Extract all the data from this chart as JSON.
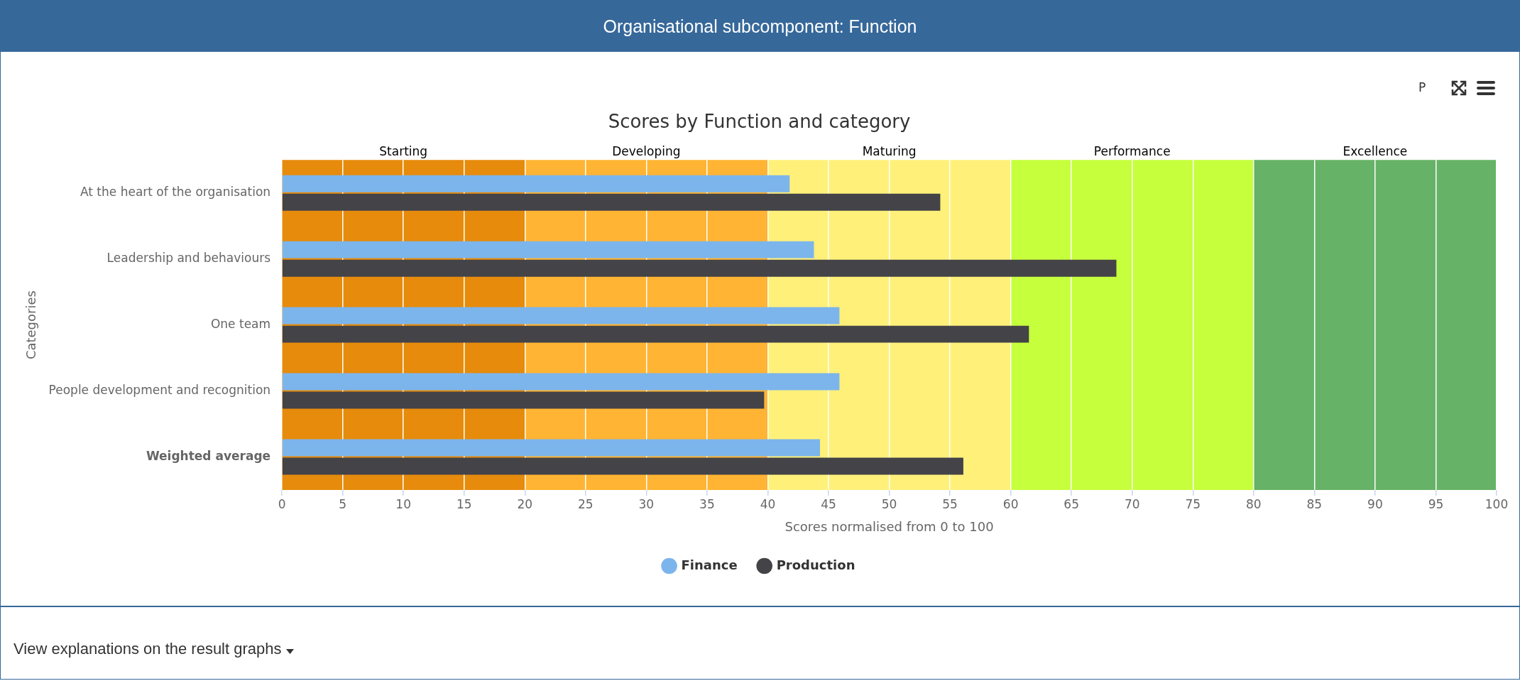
{
  "chart_data": {
    "type": "bar",
    "orientation": "horizontal",
    "title": "Organisational subcomponent: Function",
    "subtitle": "Scores by Function and category",
    "xlabel": "Scores normalised from 0 to 100",
    "ylabel": "Categories",
    "categories": [
      "At the heart of the organisation",
      "Leadership and behaviours",
      "One team",
      "People development and recognition",
      "Weighted average"
    ],
    "series": [
      {
        "name": "Finance",
        "color": "#7cb5ec",
        "values": [
          41.8,
          43.8,
          45.9,
          45.9,
          44.3
        ]
      },
      {
        "name": "Production",
        "color": "#434348",
        "values": [
          54.2,
          68.7,
          61.5,
          39.7,
          56.1
        ]
      }
    ],
    "xlim": [
      0,
      100
    ],
    "xticks": [
      0,
      5,
      10,
      15,
      20,
      25,
      30,
      35,
      40,
      45,
      50,
      55,
      60,
      65,
      70,
      75,
      80,
      85,
      90,
      95,
      100
    ],
    "bands": [
      {
        "axis": "x",
        "from": 0,
        "to": 20,
        "label": "Starting",
        "color": "#e68b0c"
      },
      {
        "axis": "x",
        "from": 20,
        "to": 40,
        "label": "Developing",
        "color": "#ffb433"
      },
      {
        "axis": "x",
        "from": 40,
        "to": 60,
        "label": "Maturing",
        "color": "#fff07a"
      },
      {
        "axis": "x",
        "from": 60,
        "to": 80,
        "label": "Performance",
        "color": "#c6ff3c"
      },
      {
        "axis": "x",
        "from": 80,
        "to": 100,
        "label": "Excellence",
        "color": "#66b266"
      }
    ],
    "grid": "x",
    "legend": "bottom",
    "annotations": [
      "P",
      "View explanations on the result graphs"
    ]
  }
}
